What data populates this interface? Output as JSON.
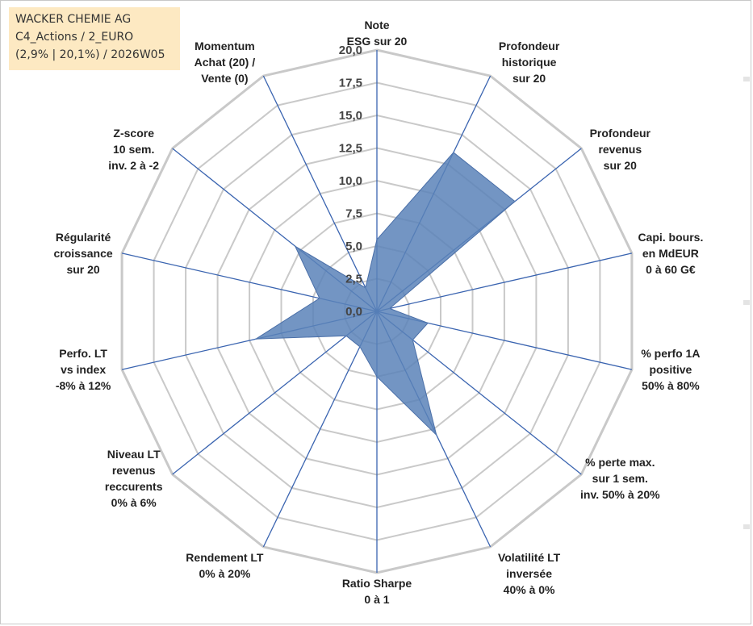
{
  "header": {
    "line1": "WACKER CHEMIE AG",
    "line2": "C4_Actions / 2_EURO",
    "line3": "(2,9% | 20,1%) / 2026W05"
  },
  "colors": {
    "fill": "#5b82b8",
    "fill_opacity": "0.85",
    "spoke": "#3a64b0",
    "ring": "#c9c9c9",
    "header_bg": "#fde9c2"
  },
  "chart_data": {
    "type": "radar",
    "rmax": 20,
    "ticks": [
      "0,0",
      "2,5",
      "5,0",
      "7,5",
      "10,0",
      "12,5",
      "15,0",
      "17,5",
      "20,0"
    ],
    "tick_values": [
      0,
      2.5,
      5,
      7.5,
      10,
      12.5,
      15,
      17.5,
      20
    ],
    "axes": [
      {
        "label": [
          "Note",
          "ESG sur 20"
        ],
        "value": 5.5
      },
      {
        "label": [
          "Profondeur",
          "historique",
          "sur 20"
        ],
        "value": 13.5
      },
      {
        "label": [
          "Profondeur",
          "revenus",
          "sur 20"
        ],
        "value": 13.5
      },
      {
        "label": [
          "Capi. bours.",
          "en MdEUR",
          "0 à 60 G€"
        ],
        "value": 1.0
      },
      {
        "label": [
          "% perfo 1A",
          "positive",
          "50% à 80%"
        ],
        "value": 4.0
      },
      {
        "label": [
          "% perte max.",
          "sur 1 sem.",
          "inv. 50% à 20%"
        ],
        "value": 3.5
      },
      {
        "label": [
          "Volatilité LT",
          "inversée",
          "40% à 0%"
        ],
        "value": 10.5
      },
      {
        "label": [
          "Ratio Sharpe",
          "0 à 1"
        ],
        "value": 5.0
      },
      {
        "label": [
          "Rendement LT",
          "0% à 20%"
        ],
        "value": 3.0
      },
      {
        "label": [
          "Niveau LT",
          "revenus",
          "reccurents",
          "0% à 6%"
        ],
        "value": 3.0
      },
      {
        "label": [
          "Perfo. LT",
          "vs index",
          "-8% à 12%"
        ],
        "value": 9.5
      },
      {
        "label": [
          "Régularité",
          "croissance",
          "sur 20"
        ],
        "value": 4.5
      },
      {
        "label": [
          "Z-score",
          "10 sem.",
          "inv. 2 à -2"
        ],
        "value": 8.0
      },
      {
        "label": [
          "Momentum",
          "Achat (20) /",
          "Vente (0)"
        ],
        "value": 2.0
      }
    ]
  }
}
